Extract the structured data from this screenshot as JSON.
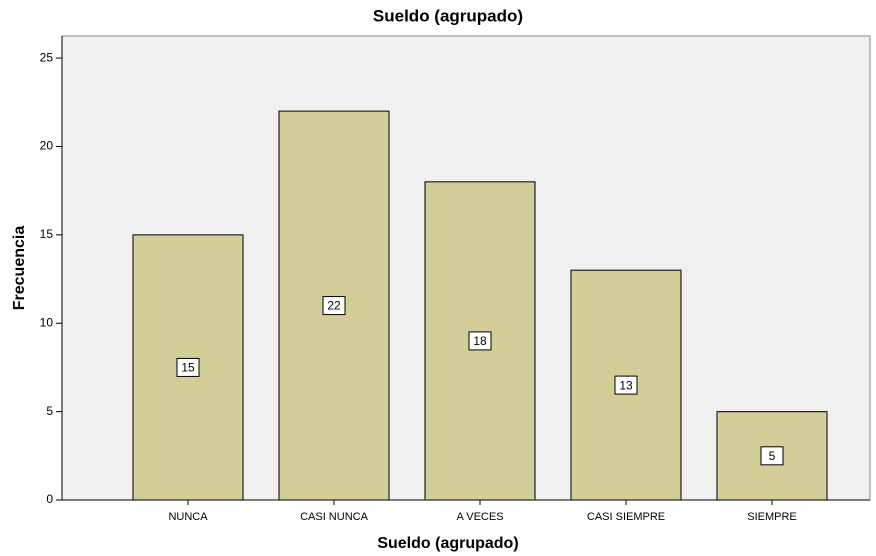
{
  "chart_data": {
    "type": "bar",
    "title": "Sueldo (agrupado)",
    "x_label": "Sueldo (agrupado)",
    "y_label": "Frecuencia",
    "categories": [
      "NUNCA",
      "CASI NUNCA",
      "A VECES",
      "CASI SIEMPRE",
      "SIEMPRE"
    ],
    "values": [
      15,
      22,
      18,
      13,
      5
    ],
    "color": "#d3ce98",
    "ylim": [
      0,
      26.25
    ],
    "yticks": [
      0,
      5,
      10,
      15,
      20,
      25
    ],
    "grid": false
  }
}
